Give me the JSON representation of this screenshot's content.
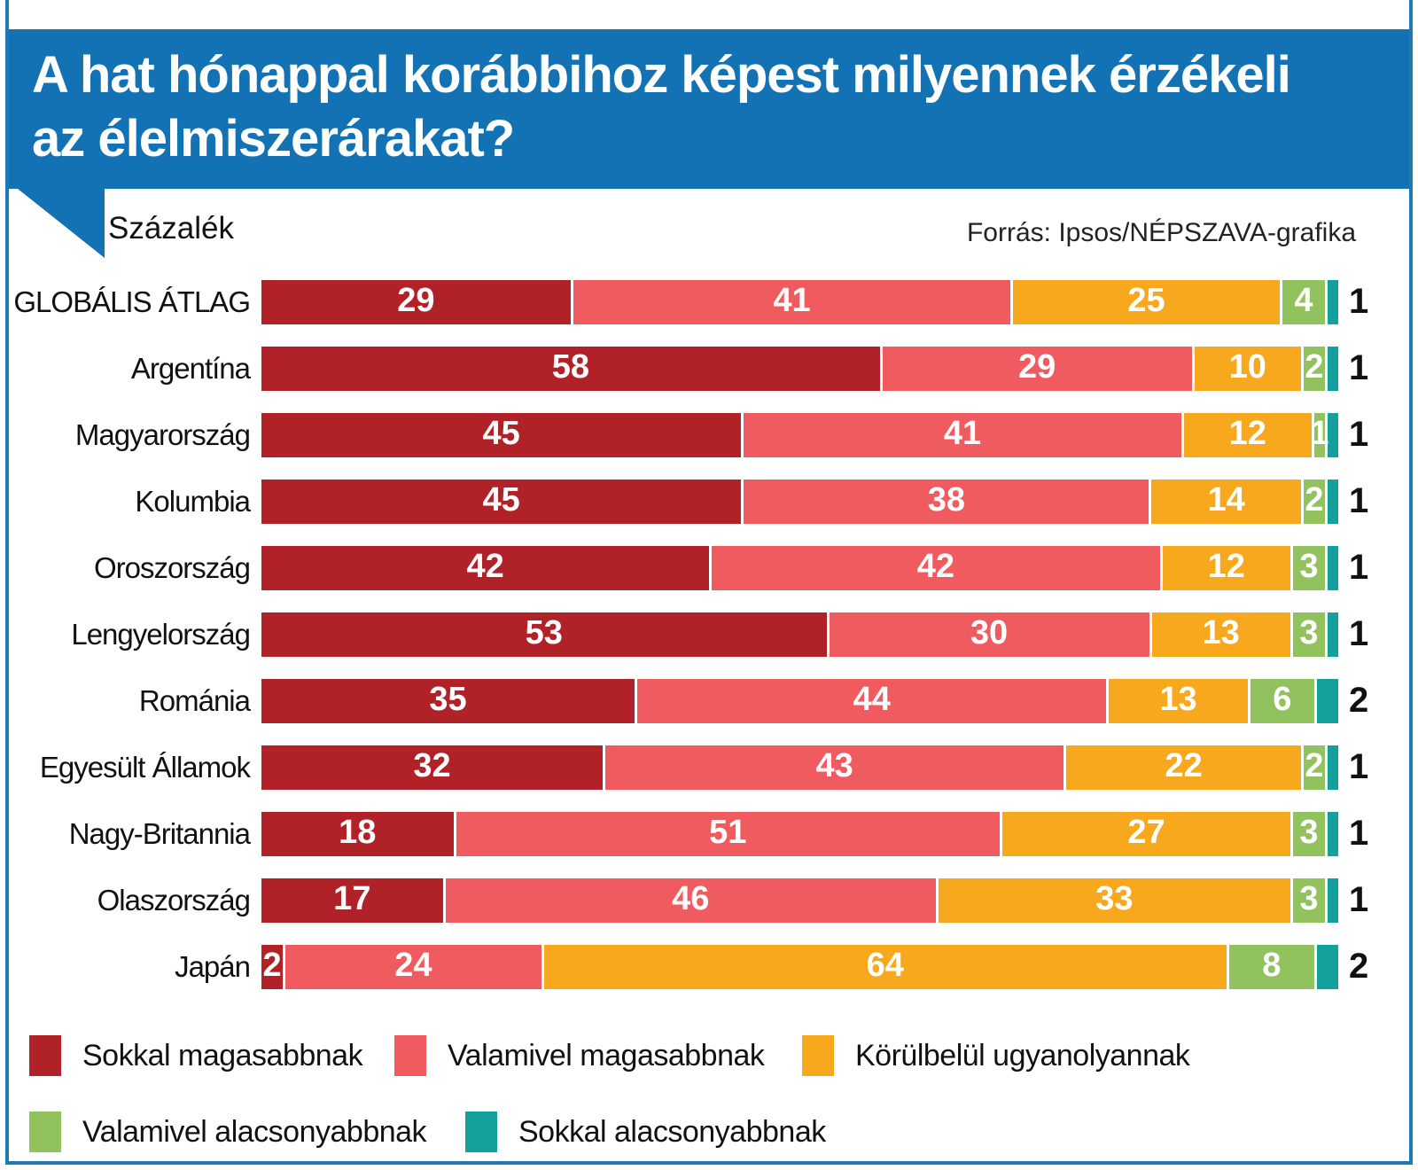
{
  "header": {
    "title_line1": "A hat hónappal korábbihoz képest milyennek érzékeli",
    "title_line2": "az élelmiszerárakat?"
  },
  "axis_label": "Százalék",
  "source": "Forrás: Ipsos/NÉPSZAVA-grafika",
  "colors": {
    "header_blue": "#1272B3",
    "frame_blue": "#1E79B6",
    "much_higher_red": "#B12228",
    "somewhat_higher_pink": "#F05B5F",
    "about_same_orange": "#F7A81D",
    "somewhat_lower_green": "#92C25D",
    "much_lower_teal": "#12A19D"
  },
  "chart_data": {
    "type": "bar",
    "orientation": "horizontal-stacked",
    "unit": "percent",
    "xlim": [
      0,
      100
    ],
    "title": "A hat hónappal korábbihoz képest milyennek érzékeli az élelmiszerárakat?",
    "xlabel": "Százalék",
    "legend_position": "bottom",
    "value_labels": "inside segments in white; last series value printed outside bar end in black",
    "categories": [
      "GLOBÁLIS ÁTLAG",
      "Argentína",
      "Magyarország",
      "Kolumbia",
      "Oroszország",
      "Lengyelország",
      "Románia",
      "Egyesült Államok",
      "Nagy-Britannia",
      "Olaszország",
      "Japán"
    ],
    "series": [
      {
        "name": "Sokkal magasabbnak",
        "color": "#B12228",
        "values": [
          29,
          58,
          45,
          45,
          42,
          53,
          35,
          32,
          18,
          17,
          2
        ]
      },
      {
        "name": "Valamivel magasabbnak",
        "color": "#F05B5F",
        "values": [
          41,
          29,
          41,
          38,
          42,
          30,
          44,
          43,
          51,
          46,
          24
        ]
      },
      {
        "name": "Körülbelül ugyanolyannak",
        "color": "#F7A81D",
        "values": [
          25,
          10,
          12,
          14,
          12,
          13,
          13,
          22,
          27,
          33,
          64
        ]
      },
      {
        "name": "Valamivel alacsonyabbnak",
        "color": "#92C25D",
        "values": [
          4,
          2,
          1,
          2,
          3,
          3,
          6,
          2,
          3,
          3,
          8
        ]
      },
      {
        "name": "Sokkal alacsonyabbnak",
        "color": "#12A19D",
        "values": [
          1,
          1,
          1,
          1,
          1,
          1,
          2,
          1,
          1,
          1,
          2
        ]
      }
    ]
  },
  "legend": {
    "rows": [
      [
        {
          "label": "Sokkal magasabbnak",
          "color": "#B12228"
        },
        {
          "label": "Valamivel magasabbnak",
          "color": "#F05B5F"
        },
        {
          "label": "Körülbelül ugyanolyannak",
          "color": "#F7A81D"
        }
      ],
      [
        {
          "label": "Valamivel alacsonyabbnak",
          "color": "#92C25D"
        },
        {
          "label": "Sokkal alacsonyabbnak",
          "color": "#12A19D"
        }
      ]
    ]
  }
}
